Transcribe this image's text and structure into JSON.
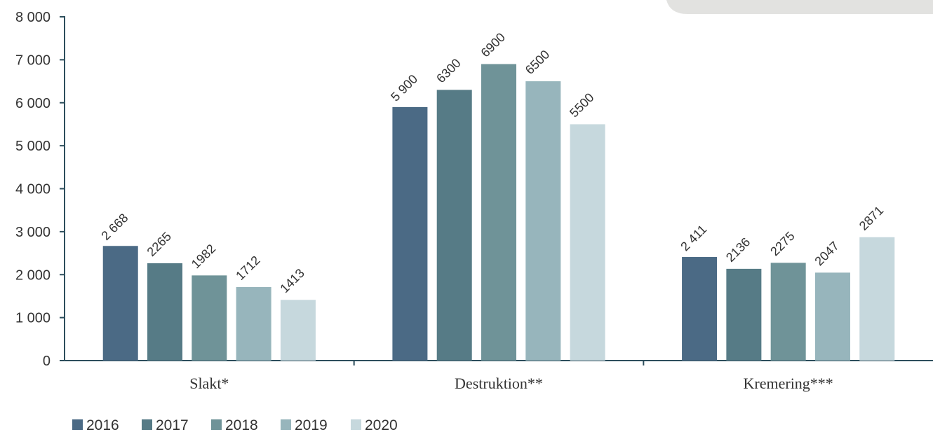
{
  "chart_data": {
    "type": "bar",
    "categories": [
      "Slakt*",
      "Destruktion**",
      "Kremering***"
    ],
    "y_ticks": [
      "0",
      "1 000",
      "2 000",
      "3 000",
      "4 000",
      "5 000",
      "6 000",
      "7 000",
      "8 000"
    ],
    "ylim": [
      0,
      8000
    ],
    "grid": false,
    "legend_position": "bottom-left",
    "series": [
      {
        "name": "2016",
        "color": "#4b6a85",
        "values": [
          2668,
          5900,
          2411
        ],
        "labels": [
          "2 668",
          "5 900",
          "2 411"
        ]
      },
      {
        "name": "2017",
        "color": "#567b86",
        "values": [
          2265,
          6300,
          2136
        ],
        "labels": [
          "2265",
          "6300",
          "2136"
        ]
      },
      {
        "name": "2018",
        "color": "#6f9398",
        "values": [
          1982,
          6900,
          2275
        ],
        "labels": [
          "1982",
          "6900",
          "2275"
        ]
      },
      {
        "name": "2019",
        "color": "#97b5bc",
        "values": [
          1712,
          6500,
          2047
        ],
        "labels": [
          "1712",
          "6500",
          "2047"
        ]
      },
      {
        "name": "2020",
        "color": "#c6d8dd",
        "values": [
          1413,
          5500,
          2871
        ],
        "labels": [
          "1413",
          "5500",
          "2871"
        ]
      }
    ]
  }
}
